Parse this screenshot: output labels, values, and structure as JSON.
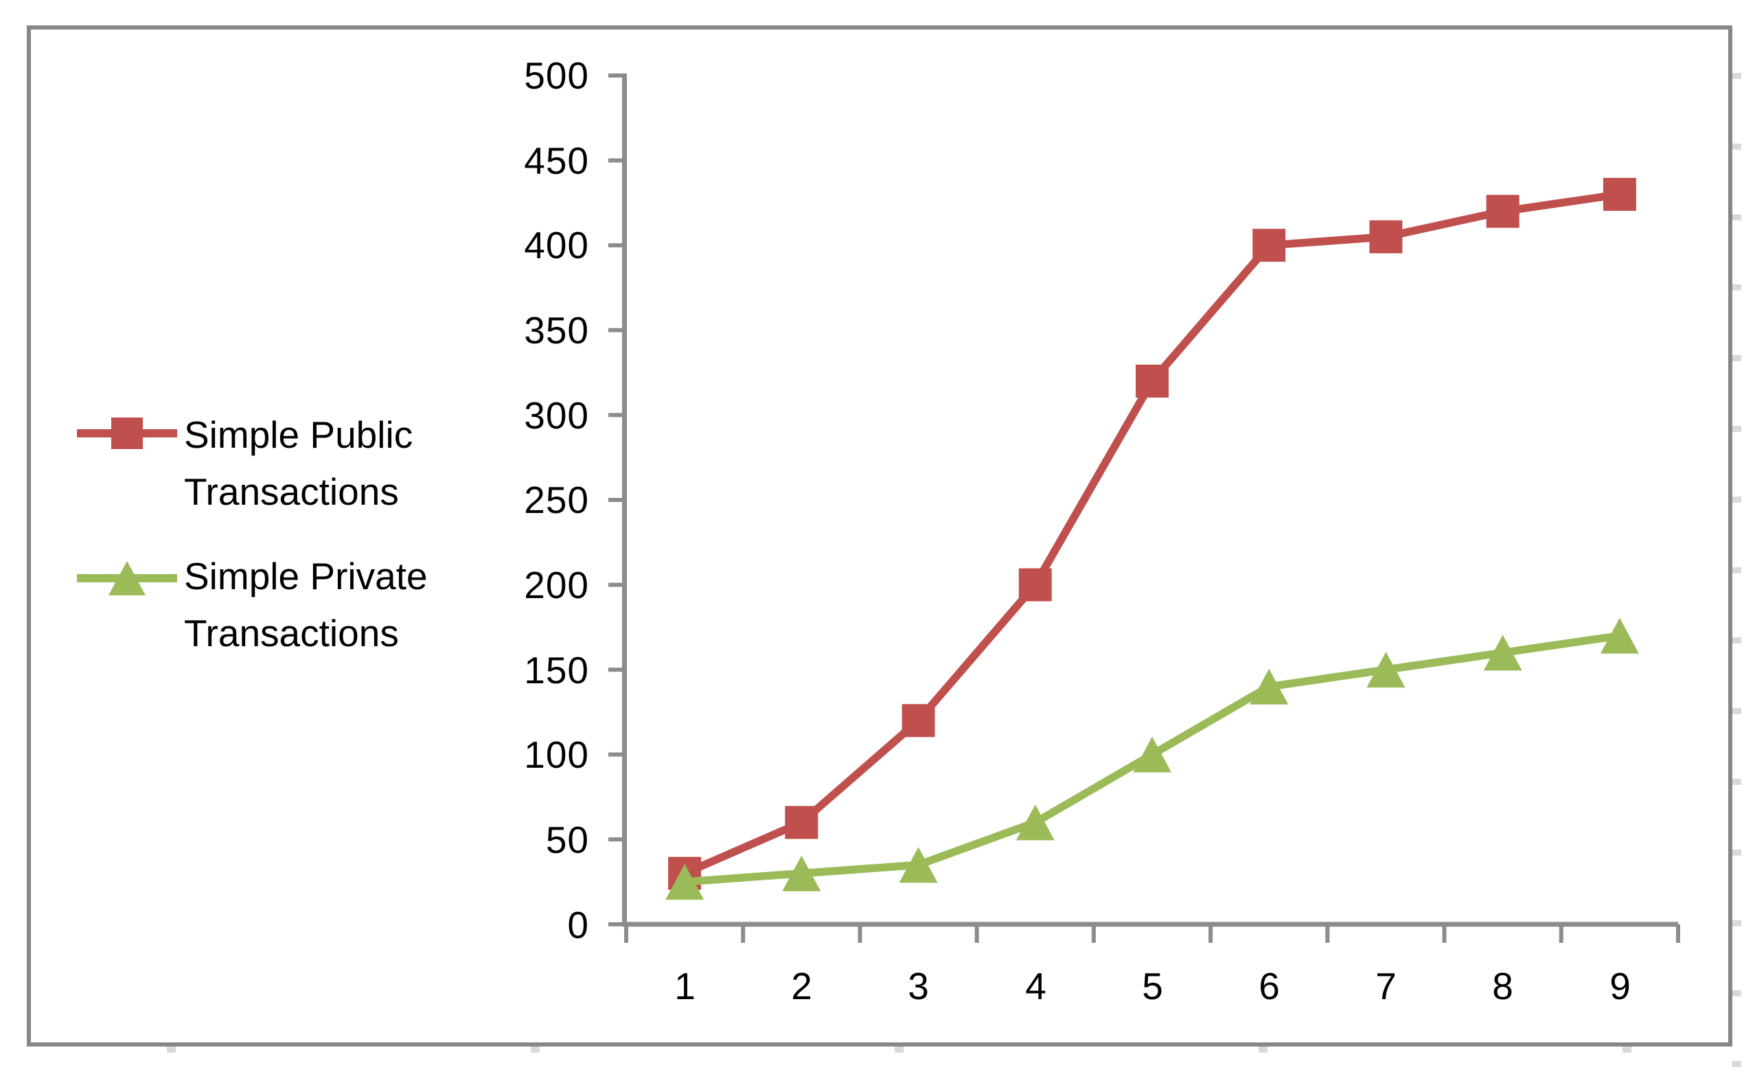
{
  "chart_data": {
    "type": "line",
    "title": "",
    "xlabel": "",
    "ylabel": "",
    "categories": [
      "1",
      "2",
      "3",
      "4",
      "5",
      "6",
      "7",
      "8",
      "9"
    ],
    "series": [
      {
        "name": "Simple Public Transactions",
        "values": [
          30,
          60,
          120,
          200,
          320,
          400,
          405,
          420,
          430
        ],
        "color": "#C0504D",
        "marker": "square"
      },
      {
        "name": "Simple Private Transactions",
        "values": [
          25,
          30,
          35,
          60,
          100,
          140,
          150,
          160,
          170
        ],
        "color": "#9BBB59",
        "marker": "triangle"
      }
    ],
    "ylim": [
      0,
      500
    ],
    "y_tick_step": 50,
    "grid": false,
    "legend_position": "left"
  },
  "axis": {
    "y_tick_labels": [
      "500",
      "450",
      "400",
      "350",
      "300",
      "250",
      "200",
      "150",
      "100",
      "50",
      "0"
    ],
    "color": "#8C8C8C"
  },
  "legend": {
    "items": [
      {
        "lines": [
          "Simple Public",
          "Transactions"
        ],
        "color": "#C0504D",
        "marker": "square"
      },
      {
        "lines": [
          "Simple Private",
          "Transactions"
        ],
        "color": "#9BBB59",
        "marker": "triangle"
      }
    ]
  },
  "frame": {
    "border_color": "#868686",
    "background": "#FFFFFF"
  }
}
